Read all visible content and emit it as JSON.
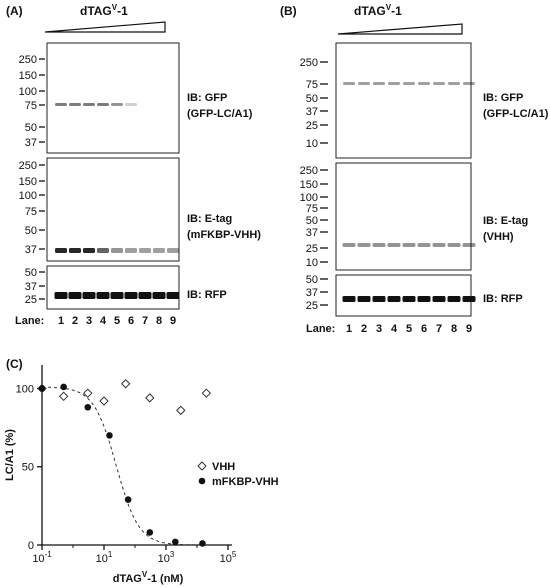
{
  "figure": {
    "panel_a_label": "(A)",
    "panel_b_label": "(B)",
    "panel_c_label": "(C)",
    "compound_label": "dTAG",
    "compound_sup": "V",
    "compound_suffix": "-1"
  },
  "panel_a": {
    "blots": [
      {
        "mw": [
          "250",
          "150",
          "100",
          "75",
          "50",
          "37"
        ],
        "ib_line1": "IB: GFP",
        "ib_line2": "(GFP-LC/A1)",
        "band_intensity": [
          0.55,
          0.55,
          0.55,
          0.55,
          0.45,
          0.2,
          0,
          0,
          0
        ]
      },
      {
        "mw": [
          "250",
          "150",
          "100",
          "75",
          "50",
          "37"
        ],
        "ib_line1": "IB: E-tag",
        "ib_line2": "(mFKBP-VHH)",
        "band_intensity": [
          0.9,
          0.9,
          0.9,
          0.65,
          0.45,
          0.4,
          0.4,
          0.4,
          0.4
        ]
      },
      {
        "mw": [
          "50",
          "37",
          "25"
        ],
        "ib_line1": "IB: RFP",
        "ib_line2": "",
        "band_intensity": [
          1,
          1,
          1,
          1,
          1,
          1,
          1,
          1,
          1
        ]
      }
    ],
    "lane_label": "Lane:",
    "lanes": [
      "1",
      "2",
      "3",
      "4",
      "5",
      "6",
      "7",
      "8",
      "9"
    ]
  },
  "panel_b": {
    "blots": [
      {
        "mw": [
          "250",
          "75",
          "50",
          "37",
          "25",
          "10"
        ],
        "ib_line1": "IB: GFP",
        "ib_line2": "(GFP-LC/A1)",
        "band_intensity": [
          0.4,
          0.4,
          0.4,
          0.4,
          0.4,
          0.4,
          0.4,
          0.4,
          0.4
        ]
      },
      {
        "mw": [
          "250",
          "150",
          "100",
          "75",
          "50",
          "37",
          "25",
          "10"
        ],
        "ib_line1": "IB: E-tag",
        "ib_line2": "(VHH)",
        "band_intensity": [
          0.45,
          0.45,
          0.45,
          0.45,
          0.45,
          0.45,
          0.45,
          0.45,
          0.45
        ]
      },
      {
        "mw": [
          "50",
          "37",
          "25"
        ],
        "ib_line1": "IB: RFP",
        "ib_line2": "",
        "band_intensity": [
          1,
          1,
          1,
          1,
          1,
          1,
          1,
          1,
          1
        ]
      }
    ],
    "lane_label": "Lane:",
    "lanes": [
      "1",
      "2",
      "3",
      "4",
      "5",
      "6",
      "7",
      "8",
      "9"
    ]
  },
  "chart_data": {
    "type": "scatter",
    "xlabel_main": "dTAG",
    "xlabel_sup": "V",
    "xlabel_suffix": "-1 (nM)",
    "ylabel": "LC/A1 (%)",
    "x_scale": "log",
    "xlim": [
      0.1,
      100000
    ],
    "ylim": [
      0,
      115
    ],
    "x_ticks": [
      {
        "base": "10",
        "exp": "-1",
        "value": 0.1
      },
      {
        "base": "10",
        "exp": "1",
        "value": 10
      },
      {
        "base": "10",
        "exp": "3",
        "value": 1000
      },
      {
        "base": "10",
        "exp": "5",
        "value": 100000
      }
    ],
    "y_ticks": [
      "0",
      "50",
      "100"
    ],
    "legend_position": "right",
    "series": [
      {
        "name": "VHH",
        "marker": "diamond-open",
        "x": [
          0.1,
          0.5,
          3,
          10,
          50,
          300,
          3000,
          20000
        ],
        "y": [
          100,
          95,
          97,
          92,
          103,
          94,
          86,
          97
        ]
      },
      {
        "name": "mFKBP-VHH",
        "marker": "circle-filled",
        "x": [
          0.1,
          0.5,
          3,
          15,
          60,
          300,
          2000,
          15000
        ],
        "y": [
          100,
          101,
          88,
          70,
          29,
          8,
          2,
          1
        ]
      }
    ],
    "fit": {
      "series": "mFKBP-VHH",
      "style": "dashed",
      "model": "four-parameter logistic",
      "top": 101,
      "bottom": 0,
      "ic50": 25,
      "hill": 1.2
    }
  }
}
